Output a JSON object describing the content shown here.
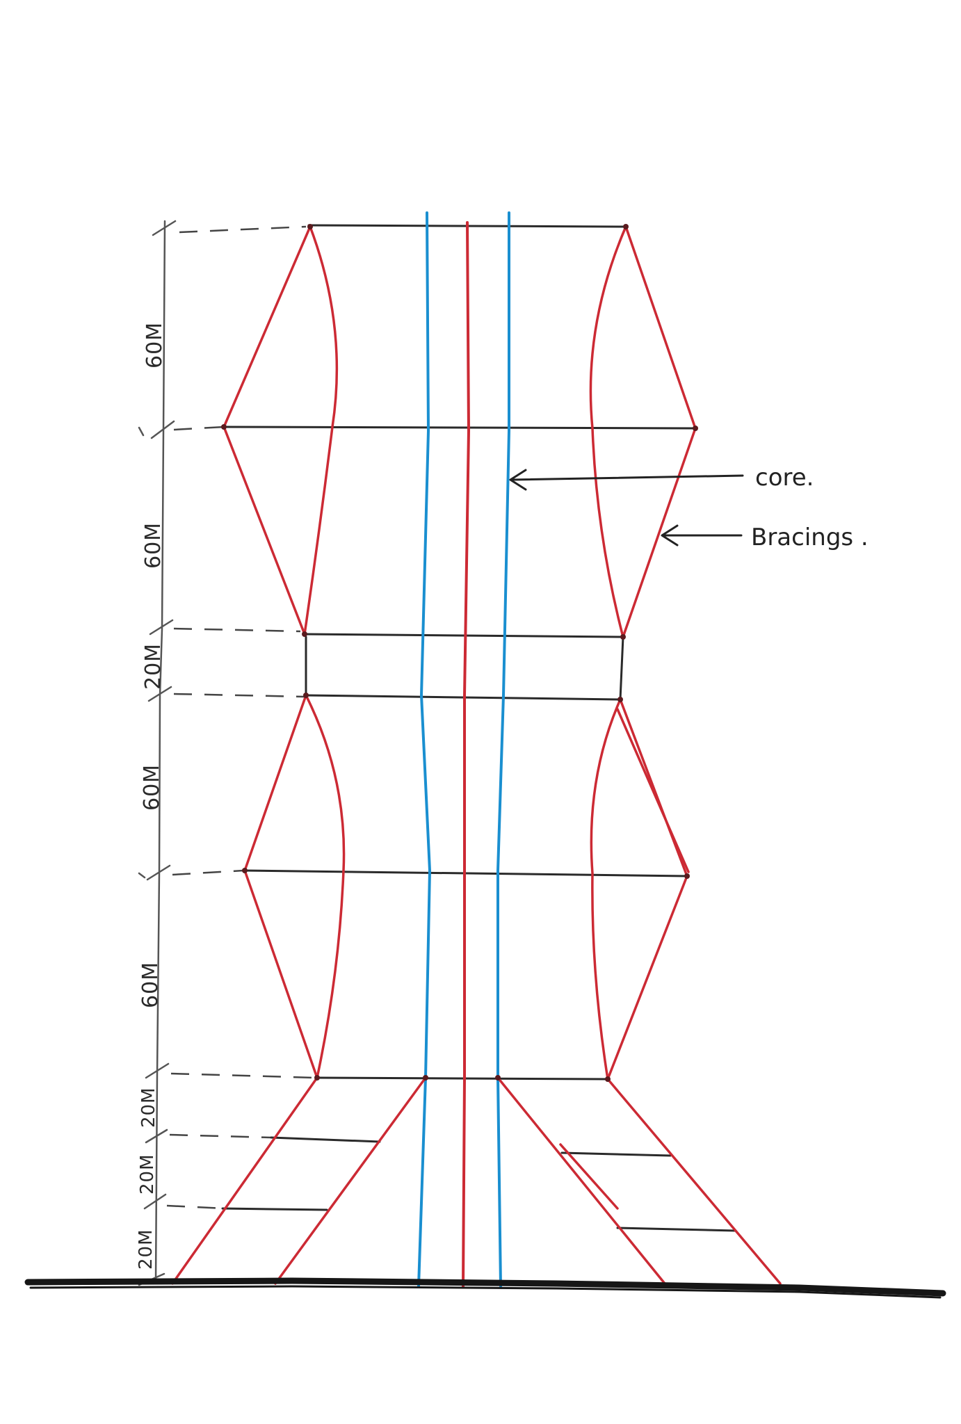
{
  "colors": {
    "paper": "#ffffff",
    "bracing": "#cc2a34",
    "core_outer": "#1a8fd0",
    "core_center": "#cc2a34",
    "floor_line": "#2a2a2a",
    "ground": "#161616",
    "dimension": "#555555",
    "text": "#222222"
  },
  "labels": {
    "core": "core.",
    "bracings": "Bracings ."
  },
  "dimensions": [
    {
      "id": "top-60",
      "text": "60M"
    },
    {
      "id": "upper-60",
      "text": "60M"
    },
    {
      "id": "mid-20",
      "text": "20M"
    },
    {
      "id": "lower-60",
      "text": "60M"
    },
    {
      "id": "bottom-60",
      "text": "60M"
    },
    {
      "id": "base-20-a",
      "text": "20M"
    },
    {
      "id": "base-20-b",
      "text": "20M"
    },
    {
      "id": "base-20-c",
      "text": "20M"
    }
  ],
  "icons": {
    "arrow": "left-arrow-icon"
  }
}
